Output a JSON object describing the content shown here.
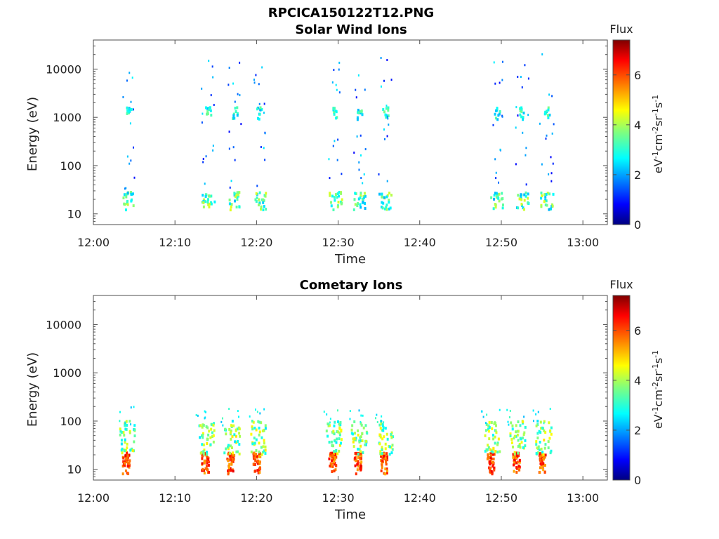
{
  "figure_title": "RPCICA150122T12.PNG",
  "chart_data": [
    {
      "type": "heatmap",
      "title": "Solar Wind Ions",
      "xlabel": "Time",
      "ylabel": "Energy (eV)",
      "x_tick_labels": [
        "12:00",
        "12:10",
        "12:20",
        "12:30",
        "12:40",
        "12:50",
        "13:00"
      ],
      "xlim_minutes": [
        0,
        63
      ],
      "y_scale": "log",
      "y_tick_values": [
        10,
        100,
        1000,
        10000
      ],
      "y_tick_labels": [
        "10",
        "100",
        "1000",
        "10000"
      ],
      "ylim": [
        6,
        40000
      ],
      "colorbar": {
        "label_top": "Flux",
        "units": "eV-1cm-2sr-1s-1",
        "range": [
          0,
          7.4
        ],
        "ticks": [
          0,
          2,
          4,
          6
        ],
        "colormap": "jet"
      },
      "bursts_minutes": [
        4.2,
        14,
        17.3,
        20.3,
        29.6,
        32.6,
        35.7,
        49.4,
        52.5,
        55.5
      ],
      "dominant_flux_low_energy": 3.0,
      "dominant_flux_peak_1000eV": 3.0
    },
    {
      "type": "heatmap",
      "title": "Cometary Ions",
      "xlabel": "Time",
      "ylabel": "Energy (eV)",
      "x_tick_labels": [
        "12:00",
        "12:10",
        "12:20",
        "12:30",
        "12:40",
        "12:50",
        "13:00"
      ],
      "xlim_minutes": [
        0,
        63
      ],
      "y_scale": "log",
      "y_tick_values": [
        10,
        100,
        1000,
        10000
      ],
      "y_tick_labels": [
        "10",
        "100",
        "1000",
        "10000"
      ],
      "ylim": [
        6,
        40000
      ],
      "colorbar": {
        "label_top": "Flux",
        "units": "eV-1cm-2sr-1s-1",
        "range": [
          0,
          7.4
        ],
        "ticks": [
          0,
          2,
          4,
          6
        ],
        "colormap": "jet"
      },
      "bursts_minutes": [
        4.0,
        13.7,
        16.8,
        20.0,
        29.3,
        32.4,
        35.6,
        48.7,
        51.8,
        55.0
      ],
      "peak_flux_10_20eV": 6.3
    }
  ]
}
